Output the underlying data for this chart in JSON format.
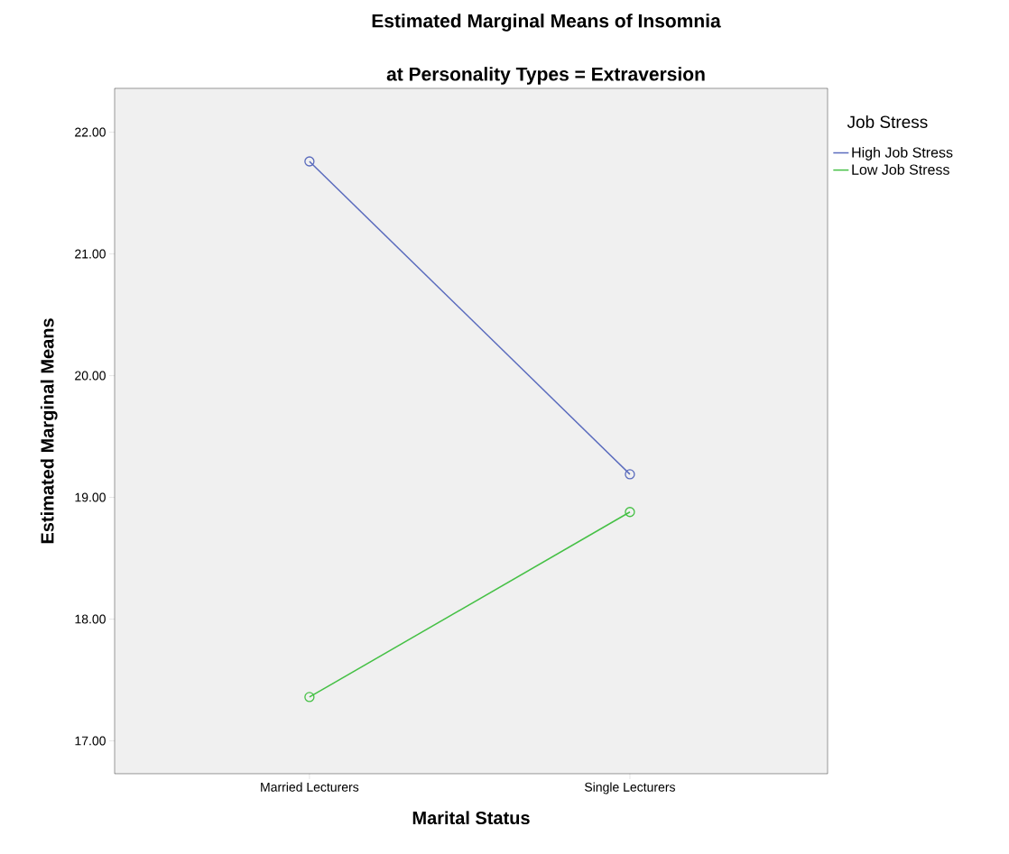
{
  "chart_data": {
    "type": "line",
    "title": "Estimated Marginal Means of Insomnia",
    "subtitle": "at Personality Types = Extraversion",
    "xlabel": "Marital Status",
    "ylabel": "Estimated Marginal Means",
    "legend_title": "Job Stress",
    "categories": [
      "Married Lecturers",
      "Single Lecturers"
    ],
    "series": [
      {
        "name": "High Job Stress",
        "color": "#5a6bbd",
        "values": [
          21.76,
          19.19
        ]
      },
      {
        "name": "Low Job Stress",
        "color": "#45c045",
        "values": [
          17.36,
          18.88
        ]
      }
    ],
    "ylim": [
      16.73,
      22.36
    ],
    "yticks": [
      {
        "value": 17,
        "label": "17.00"
      },
      {
        "value": 18,
        "label": "18.00"
      },
      {
        "value": 19,
        "label": "19.00"
      },
      {
        "value": 20,
        "label": "20.00"
      },
      {
        "value": 21,
        "label": "21.00"
      },
      {
        "value": 22,
        "label": "22.00"
      }
    ],
    "grid": false,
    "legend": "top right",
    "marker": "circle",
    "line_style": "solid"
  }
}
